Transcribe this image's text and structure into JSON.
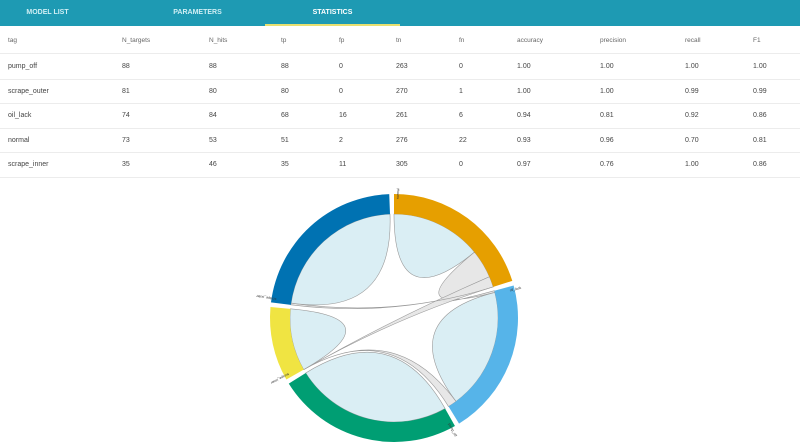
{
  "tabs": [
    {
      "label": "MODEL LIST"
    },
    {
      "label": "PARAMETERS"
    },
    {
      "label": "STATISTICS"
    }
  ],
  "active_tab": "STATISTICS",
  "table": {
    "columns": [
      "tag",
      "N_targets",
      "N_hits",
      "tp",
      "fp",
      "tn",
      "fn",
      "accuracy",
      "precision",
      "recall",
      "F1"
    ],
    "rows": [
      [
        "pump_off",
        "88",
        "88",
        "88",
        "0",
        "263",
        "0",
        "1.00",
        "1.00",
        "1.00",
        "1.00"
      ],
      [
        "scrape_outer",
        "81",
        "80",
        "80",
        "0",
        "270",
        "1",
        "1.00",
        "1.00",
        "0.99",
        "0.99"
      ],
      [
        "oil_lack",
        "74",
        "84",
        "68",
        "16",
        "261",
        "6",
        "0.94",
        "0.81",
        "0.92",
        "0.86"
      ],
      [
        "normal",
        "73",
        "53",
        "51",
        "2",
        "276",
        "22",
        "0.93",
        "0.96",
        "0.70",
        "0.81"
      ],
      [
        "scrape_inner",
        "35",
        "46",
        "35",
        "11",
        "305",
        "0",
        "0.97",
        "0.76",
        "1.00",
        "0.86"
      ]
    ]
  },
  "chart_data": {
    "type": "chord",
    "groups": [
      "normal",
      "oil_lack",
      "pump_off",
      "scrape_inner",
      "scrape_outer"
    ],
    "colors": [
      "#e69f00",
      "#56b4e9",
      "#009e73",
      "#f0e442",
      "#0072b2"
    ],
    "self_chord_color": "#d6ecf3",
    "cross_chord_color": "#e4e4e4",
    "matrix": [
      [
        51,
        16,
        0,
        6,
        0
      ],
      [
        1,
        68,
        0,
        5,
        0
      ],
      [
        0,
        0,
        88,
        0,
        0
      ],
      [
        0,
        0,
        0,
        35,
        0
      ],
      [
        1,
        0,
        0,
        0,
        80
      ]
    ]
  }
}
